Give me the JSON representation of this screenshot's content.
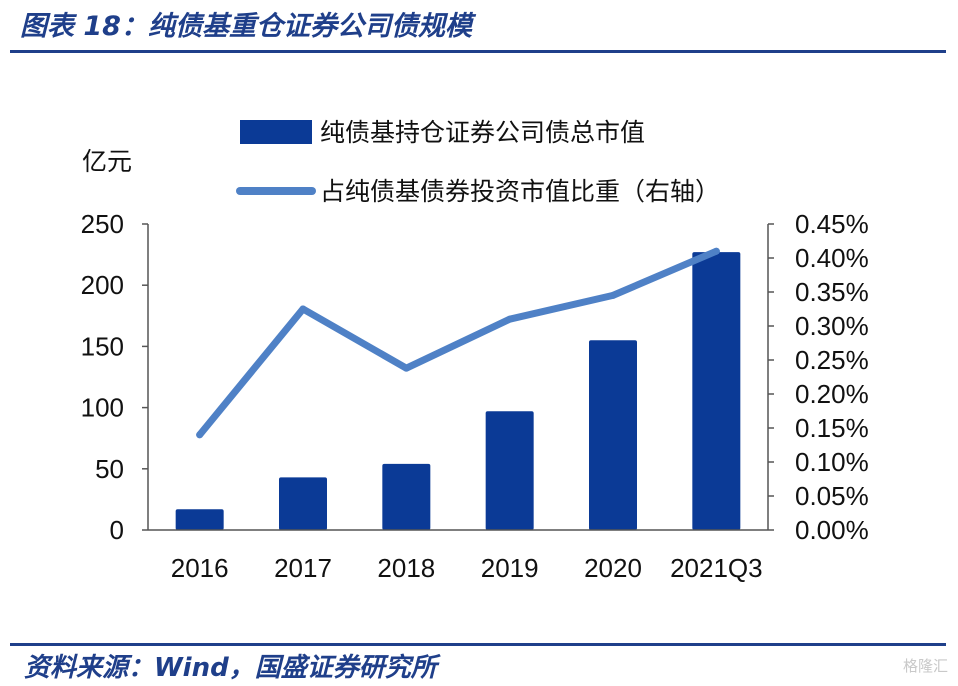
{
  "figure": {
    "title": "图表 18：纯债基重仓证券公司债规模",
    "source": "资料来源：Wind，国盛证券研究所",
    "watermark": "格隆汇"
  },
  "chart_data": {
    "type": "bar",
    "categories": [
      "2016",
      "2017",
      "2018",
      "2019",
      "2020",
      "2021Q3"
    ],
    "series": [
      {
        "name": "纯债基持仓证券公司债总市值",
        "type": "bar",
        "axis": "left",
        "color": "#0b3a96",
        "values": [
          17,
          43,
          54,
          97,
          155,
          227
        ]
      },
      {
        "name": "占纯债基债券投资市值比重（右轴）",
        "type": "line",
        "axis": "right",
        "color": "#4f81c6",
        "values": [
          0.14,
          0.325,
          0.238,
          0.31,
          0.345,
          0.41
        ]
      }
    ],
    "y_left": {
      "unit_label": "亿元",
      "range": [
        0,
        250
      ],
      "ticks": [
        0,
        50,
        100,
        150,
        200,
        250
      ]
    },
    "y_right": {
      "range": [
        0,
        0.45
      ],
      "ticks": [
        "0.00%",
        "0.05%",
        "0.10%",
        "0.15%",
        "0.20%",
        "0.25%",
        "0.30%",
        "0.35%",
        "0.40%",
        "0.45%"
      ]
    },
    "grid": false,
    "legend_position": "top"
  }
}
